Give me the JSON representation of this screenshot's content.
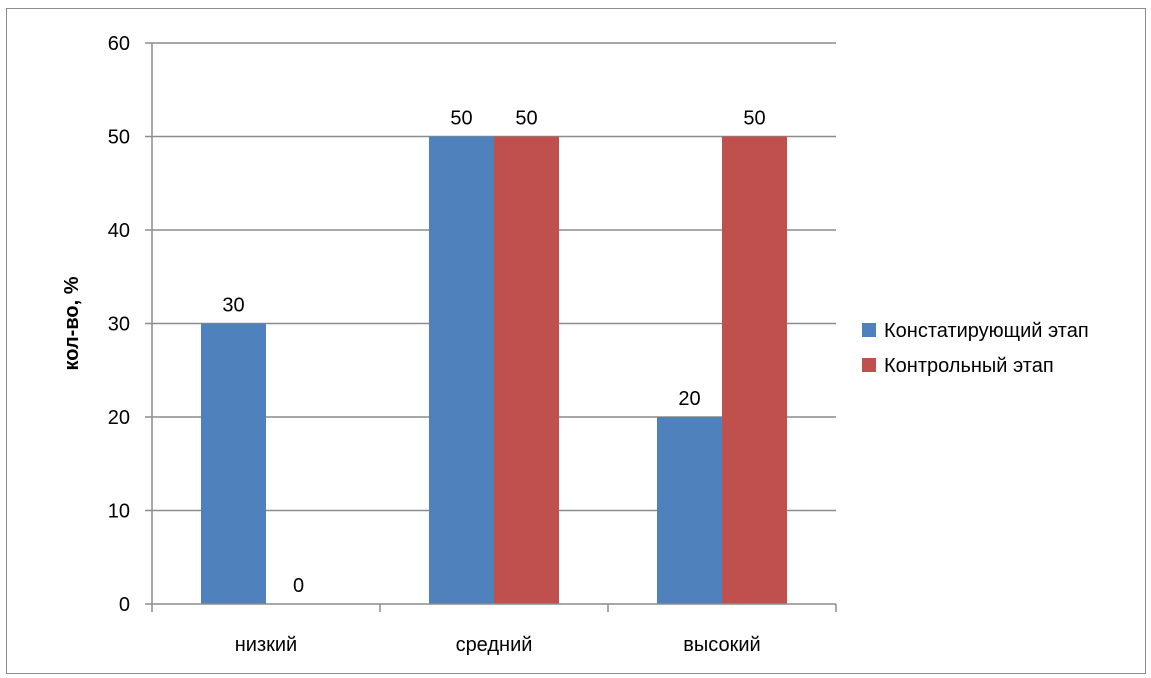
{
  "chart_data": {
    "type": "bar",
    "categories": [
      "низкий",
      "средний",
      "высокий"
    ],
    "series": [
      {
        "name": "Констатирующий этап",
        "values": [
          30,
          50,
          20
        ],
        "color": "#4f81bd"
      },
      {
        "name": "Контрольный этап",
        "values": [
          0,
          50,
          50
        ],
        "color": "#c0504d"
      }
    ],
    "title": "",
    "xlabel": "",
    "ylabel": "кол-во, %",
    "ylim": [
      0,
      60
    ],
    "yticks": [
      0,
      10,
      20,
      30,
      40,
      50,
      60
    ],
    "grid": true,
    "legend_position": "right",
    "data_labels": true
  }
}
